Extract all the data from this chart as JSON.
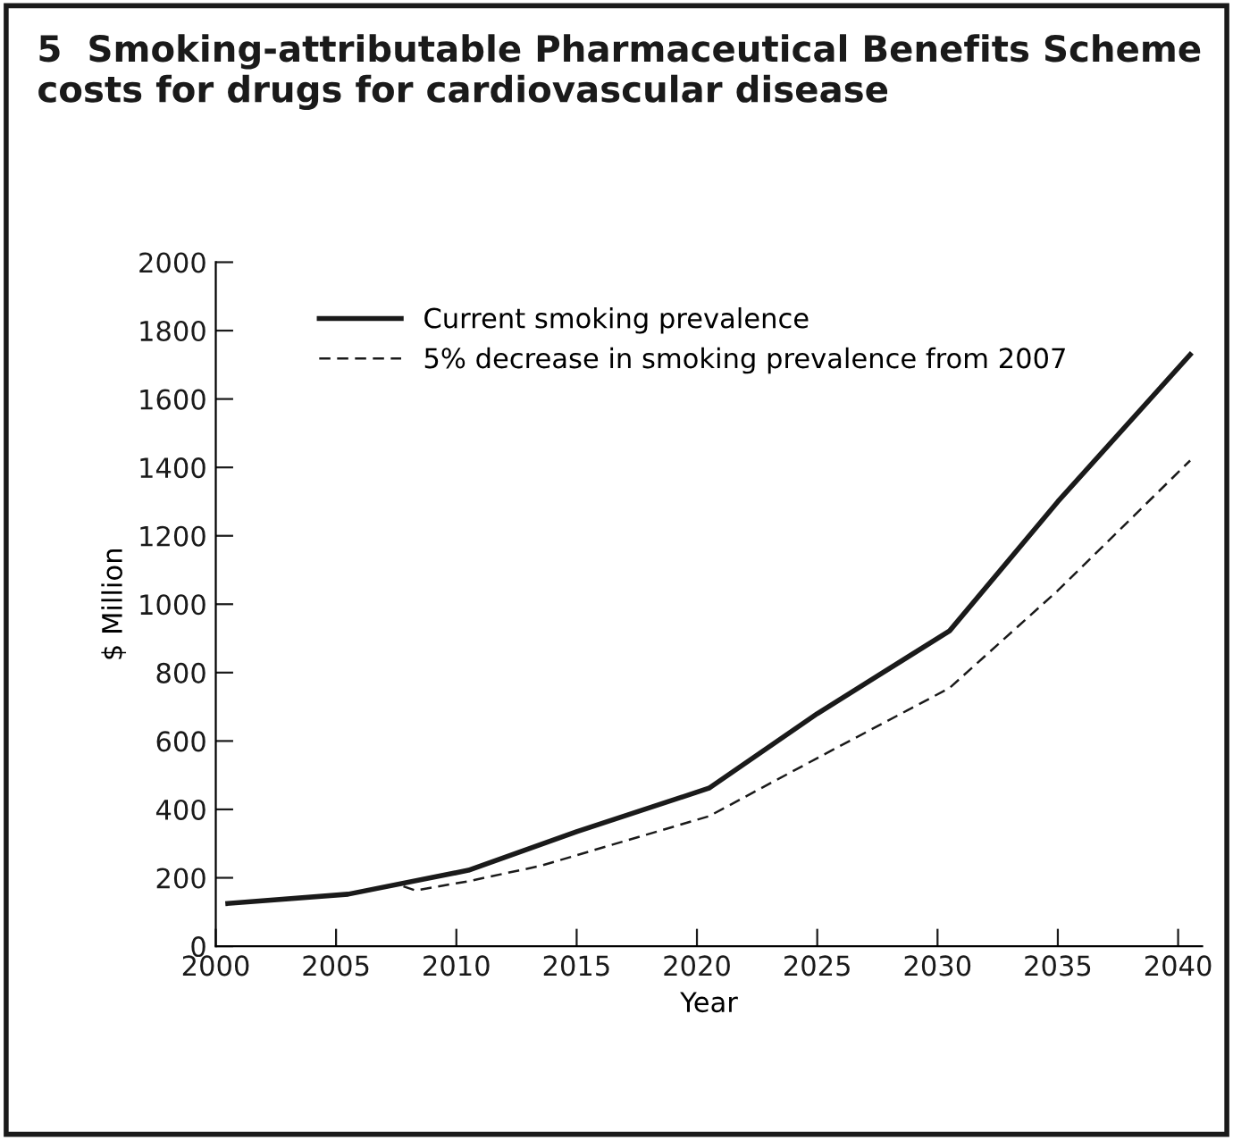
{
  "chart_data": {
    "type": "line",
    "title": "5  Smoking-attributable Pharmaceutical Benefits Scheme costs for drugs for cardiovascular disease",
    "xlabel": "Year",
    "ylabel": "$ Million",
    "xlim": [
      2000,
      2041
    ],
    "xticks": [
      2000,
      2005,
      2010,
      2015,
      2020,
      2025,
      2030,
      2035,
      2040
    ],
    "ylim": [
      0,
      2000
    ],
    "yticks": [
      0,
      200,
      400,
      600,
      800,
      1000,
      1200,
      1400,
      1600,
      1800,
      2000
    ],
    "grid": false,
    "legend": "top left",
    "series": [
      {
        "name": "Current smoking prevalence",
        "color": "#1a1a1a",
        "line_style": "solid",
        "x": [
          2000.5,
          2005.5,
          2010.5,
          2015,
          2020.5,
          2025,
          2030.5,
          2035,
          2040.5
        ],
        "values": [
          125,
          152,
          222,
          335,
          462,
          680,
          922,
          1300,
          1730
        ]
      },
      {
        "name": "5% decrease in smoking prevalence from 2007",
        "color": "#1a1a1a",
        "line_style": "dashed",
        "x": [
          2007.8,
          2008.3,
          2010.5,
          2013.5,
          2020.5,
          2025,
          2030.5,
          2035,
          2040.5
        ],
        "values": [
          175,
          163,
          190,
          235,
          380,
          550,
          755,
          1040,
          1420
        ]
      }
    ]
  }
}
